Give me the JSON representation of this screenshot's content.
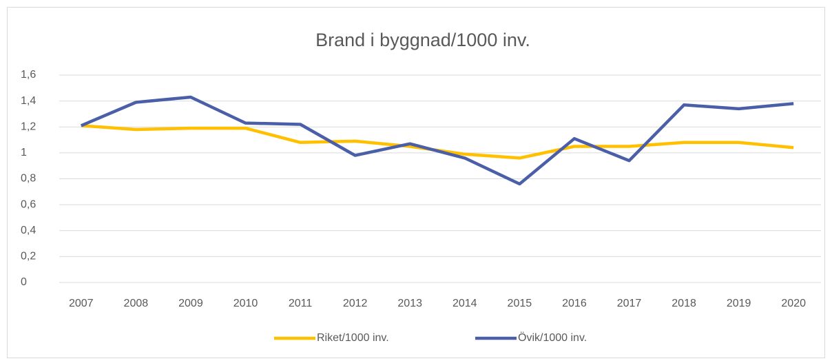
{
  "chart_data": {
    "type": "line",
    "title": "Brand i byggnad/1000 inv.",
    "categories": [
      "2007",
      "2008",
      "2009",
      "2010",
      "2011",
      "2012",
      "2013",
      "2014",
      "2015",
      "2016",
      "2017",
      "2018",
      "2019",
      "2020"
    ],
    "series": [
      {
        "name": "Riket/1000 inv.",
        "color": "#ffc000",
        "values": [
          1.21,
          1.18,
          1.19,
          1.19,
          1.08,
          1.09,
          1.05,
          0.99,
          0.96,
          1.05,
          1.05,
          1.08,
          1.08,
          1.04
        ]
      },
      {
        "name": "Övik/1000 inv.",
        "color": "#4a5fa8",
        "values": [
          1.21,
          1.39,
          1.43,
          1.23,
          1.22,
          0.98,
          1.07,
          0.96,
          0.76,
          1.11,
          0.94,
          1.37,
          1.34,
          1.38
        ]
      }
    ],
    "ylim": [
      0,
      1.6
    ],
    "yticks": [
      0,
      {
        "value": 0.2,
        "label": "0,2"
      },
      {
        "value": 0.4,
        "label": "0,4"
      },
      {
        "value": 0.6,
        "label": "0,6"
      },
      {
        "value": 0.8,
        "label": "0,8"
      },
      1,
      {
        "value": 1.2,
        "label": "1,2"
      },
      {
        "value": 1.4,
        "label": "1,4"
      },
      {
        "value": 1.6,
        "label": "1,6"
      }
    ],
    "grid": true,
    "legend": "bottom"
  }
}
